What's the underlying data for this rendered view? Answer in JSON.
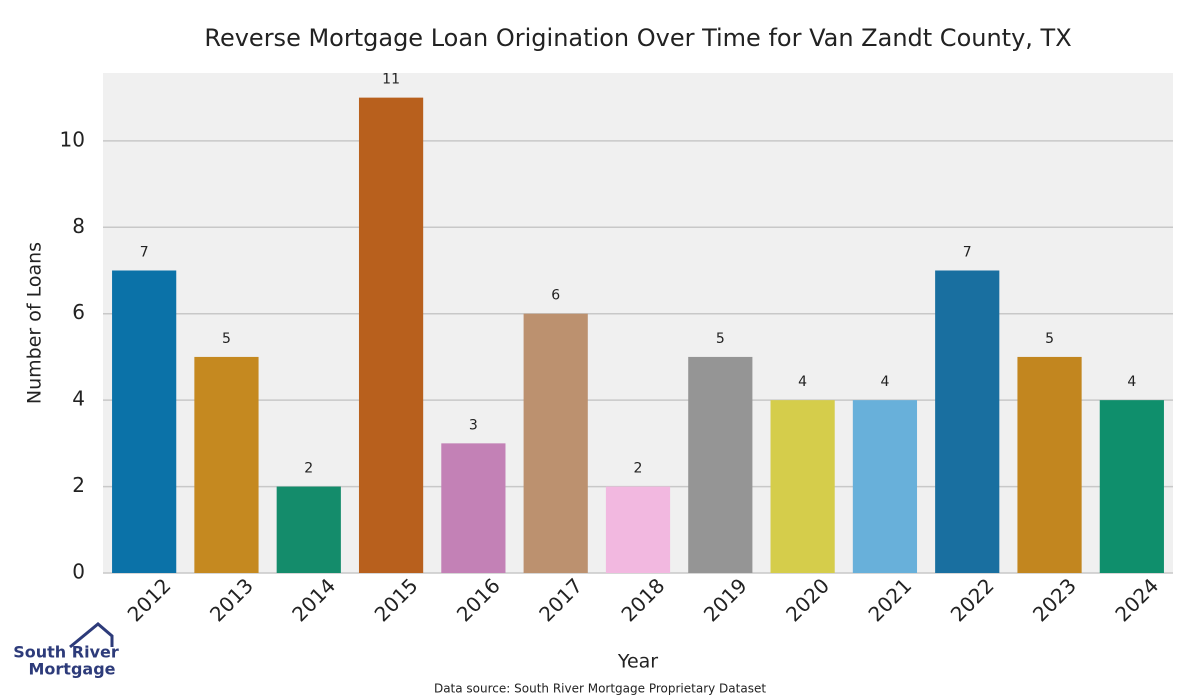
{
  "chart_data": {
    "type": "bar",
    "title": "Reverse Mortgage Loan Origination Over Time for Van Zandt County, TX",
    "x_label": "Year",
    "y_label": "Number of Loans",
    "categories": [
      "2012",
      "2013",
      "2014",
      "2015",
      "2016",
      "2017",
      "2018",
      "2019",
      "2020",
      "2021",
      "2022",
      "2023",
      "2024"
    ],
    "values": [
      7,
      5,
      2,
      11,
      3,
      6,
      2,
      5,
      4,
      4,
      7,
      5,
      4
    ],
    "colors": [
      "#0b72a8",
      "#c58920",
      "#148c6b",
      "#b8601d",
      "#c381b6",
      "#bc916f",
      "#f2b8e0",
      "#959595",
      "#d5cd4b",
      "#68b0da",
      "#196fa0",
      "#c2861f",
      "#0f8f6c"
    ],
    "ylim": [
      0,
      11.57
    ],
    "yticks": [
      0,
      2,
      4,
      6,
      8,
      10
    ],
    "grid": true
  },
  "source": "Data source: South River Mortgage Proprietary Dataset",
  "logo": {
    "line1": "South River",
    "line2": "Mortgage"
  }
}
